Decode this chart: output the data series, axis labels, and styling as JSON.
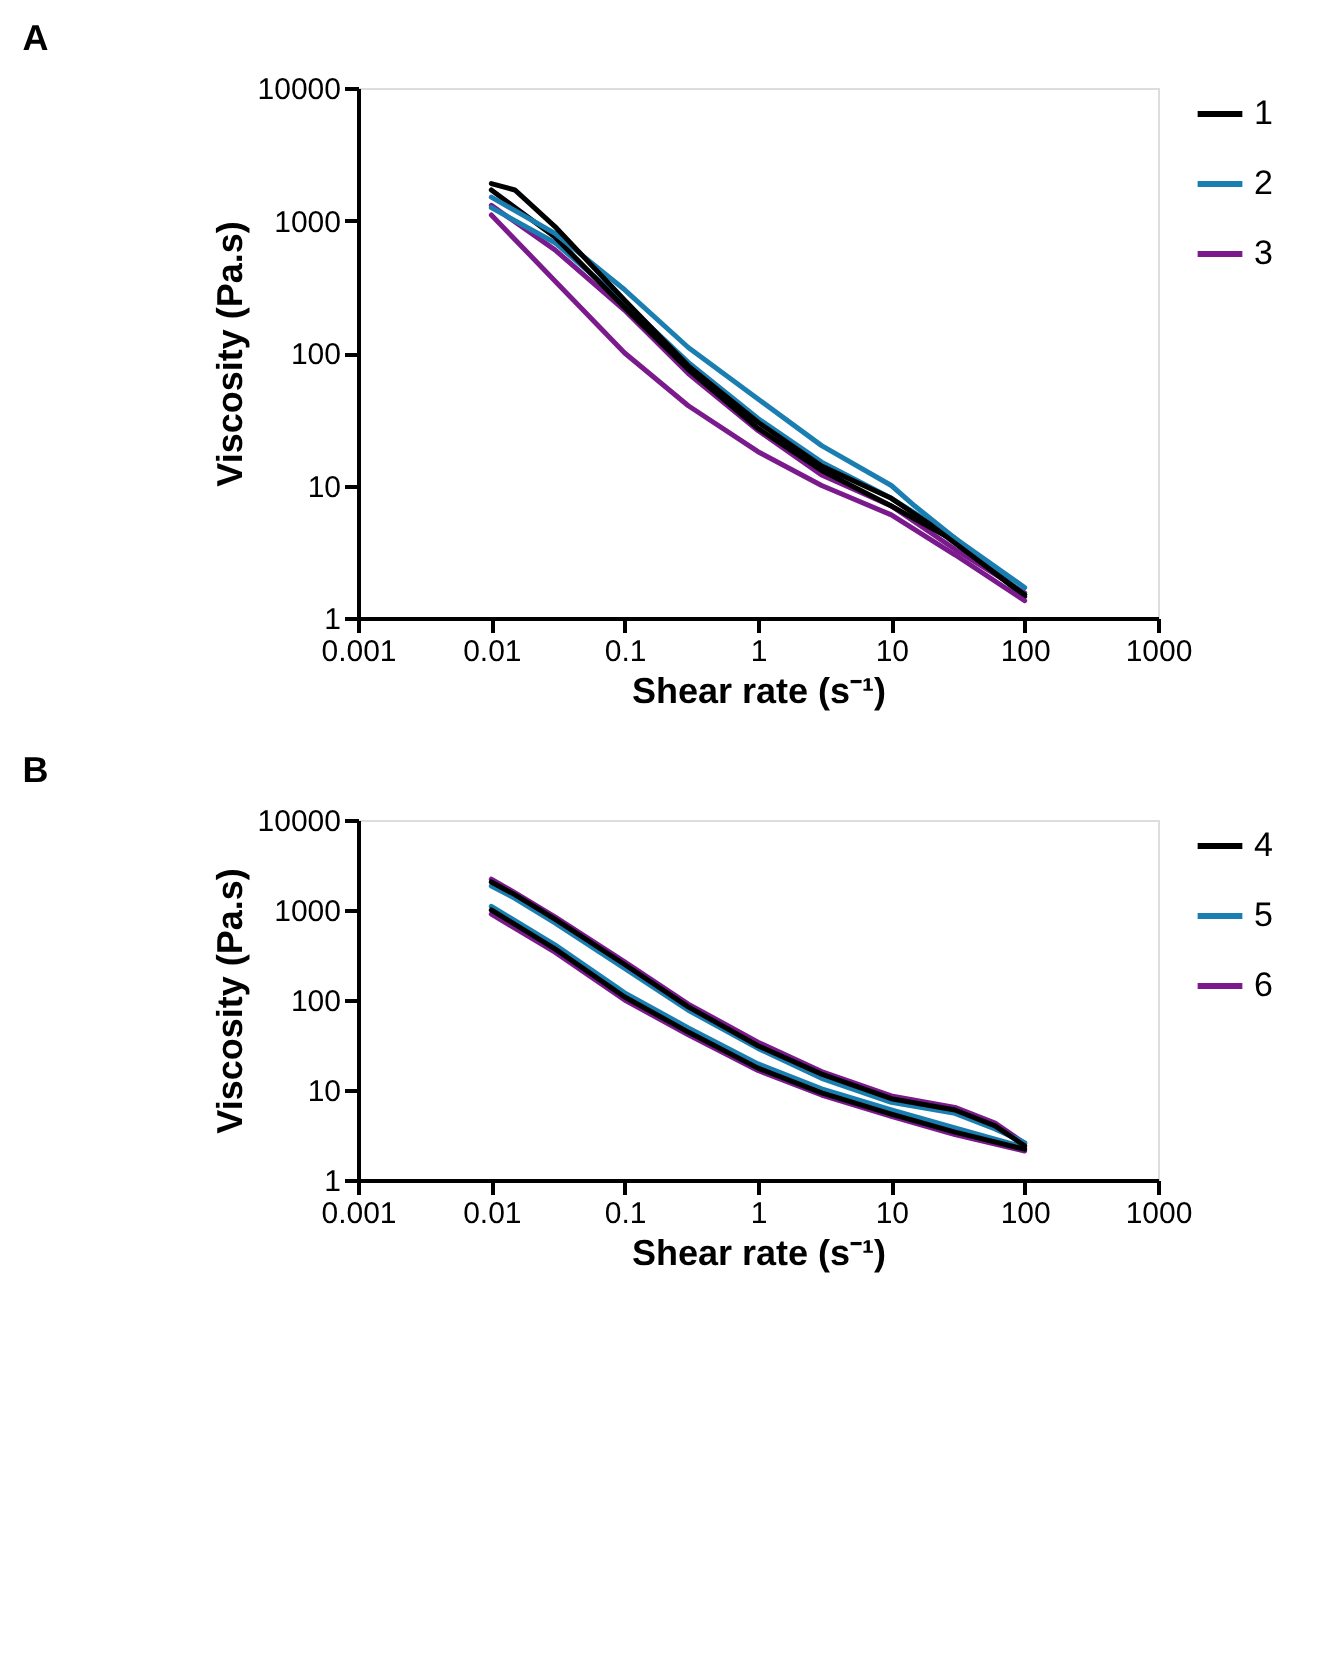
{
  "chart_data": [
    {
      "type": "line",
      "title": "A",
      "xlabel": "Shear rate (s⁻¹)",
      "ylabel": "Viscosity (Pa.s)",
      "log": "xy",
      "grid": false,
      "legend": "top right",
      "marker": "none",
      "line_style": "solid",
      "xlim": [
        0.001,
        1000
      ],
      "xticks": [
        0.001,
        0.01,
        0.1,
        1,
        10,
        100,
        1000
      ],
      "ylim": [
        1,
        10000
      ],
      "yticks": [
        1,
        10,
        100,
        1000,
        10000
      ],
      "series": [
        {
          "name": "3",
          "color": "#7b1a8c",
          "x": [
            0.01,
            0.03,
            0.1,
            0.3,
            1,
            3,
            10,
            30,
            100
          ],
          "values": [
            1100,
            350,
            100,
            40,
            18,
            10,
            6,
            3,
            1.35
          ]
        },
        {
          "color": "#7b1a8c",
          "x": [
            0.01,
            0.03,
            0.1,
            0.3,
            1,
            3,
            10,
            30,
            100
          ],
          "values": [
            1300,
            600,
            210,
            70,
            26,
            12,
            7,
            3.3,
            1.55
          ]
        },
        {
          "name": "2",
          "color": "#1a7fb0",
          "x": [
            0.01,
            0.03,
            0.1,
            0.3,
            1,
            3,
            10,
            15,
            30,
            100
          ],
          "values": [
            1500,
            800,
            300,
            110,
            45,
            20,
            10,
            7,
            4,
            1.5
          ]
        },
        {
          "color": "#1a7fb0",
          "x": [
            0.01,
            0.03,
            0.1,
            0.3,
            1,
            3,
            10,
            30,
            100
          ],
          "values": [
            1250,
            680,
            240,
            85,
            32,
            15,
            8,
            4,
            1.7
          ]
        },
        {
          "name": "1",
          "color": "#000000",
          "x": [
            0.01,
            0.015,
            0.03,
            0.1,
            0.3,
            1,
            3,
            10,
            20,
            50,
            100
          ],
          "values": [
            1900,
            1700,
            900,
            250,
            80,
            30,
            14,
            8,
            5,
            2.5,
            1.5
          ]
        },
        {
          "color": "#000000",
          "x": [
            0.01,
            0.03,
            0.1,
            0.3,
            1,
            3,
            10,
            30,
            100
          ],
          "values": [
            1700,
            750,
            220,
            75,
            27,
            13,
            7,
            3.8,
            1.45
          ]
        }
      ]
    },
    {
      "type": "line",
      "title": "B",
      "xlabel": "Shear rate (s⁻¹)",
      "ylabel": "Viscosity (Pa.s)",
      "log": "xy",
      "grid": false,
      "legend": "top right",
      "marker": "none",
      "line_style": "solid",
      "xlim": [
        0.001,
        1000
      ],
      "xticks": [
        0.001,
        0.01,
        0.1,
        1,
        10,
        100,
        1000
      ],
      "ylim": [
        1,
        10000
      ],
      "yticks": [
        1,
        10,
        100,
        1000,
        10000
      ],
      "series": [
        {
          "name": "6",
          "color": "#7b1a8c",
          "x": [
            0.01,
            0.015,
            0.03,
            0.1,
            0.3,
            1,
            3,
            10,
            30,
            60,
            100
          ],
          "values": [
            2200,
            1560,
            840,
            265,
            90,
            34,
            16,
            8.6,
            6.4,
            4.3,
            2.55
          ]
        },
        {
          "color": "#7b1a8c",
          "x": [
            0.01,
            0.03,
            0.1,
            0.3,
            1,
            3,
            10,
            30,
            100
          ],
          "values": [
            900,
            340,
            100,
            41,
            16.5,
            8.8,
            5.1,
            3.2,
            2.1
          ]
        },
        {
          "name": "5",
          "color": "#1a7fb0",
          "x": [
            0.01,
            0.015,
            0.03,
            0.1,
            0.3,
            1,
            3,
            10,
            30,
            60,
            100
          ],
          "values": [
            1850,
            1350,
            720,
            225,
            77,
            29,
            13.5,
            7.3,
            5.5,
            3.7,
            2.6
          ]
        },
        {
          "color": "#1a7fb0",
          "x": [
            0.01,
            0.03,
            0.1,
            0.3,
            1,
            3,
            10,
            30,
            100
          ],
          "values": [
            1100,
            410,
            120,
            49,
            19.5,
            10.3,
            6,
            3.8,
            2.3
          ]
        },
        {
          "name": "4",
          "color": "#000000",
          "x": [
            0.01,
            0.015,
            0.03,
            0.1,
            0.3,
            1,
            3,
            10,
            30,
            60,
            100
          ],
          "values": [
            2050,
            1480,
            790,
            248,
            84,
            31,
            15,
            8,
            6,
            4,
            2.4
          ]
        },
        {
          "color": "#000000",
          "x": [
            0.01,
            0.03,
            0.1,
            0.3,
            1,
            3,
            10,
            30,
            100
          ],
          "values": [
            1000,
            370,
            108,
            44,
            17.5,
            9.3,
            5.4,
            3.4,
            2.2
          ]
        }
      ]
    }
  ]
}
